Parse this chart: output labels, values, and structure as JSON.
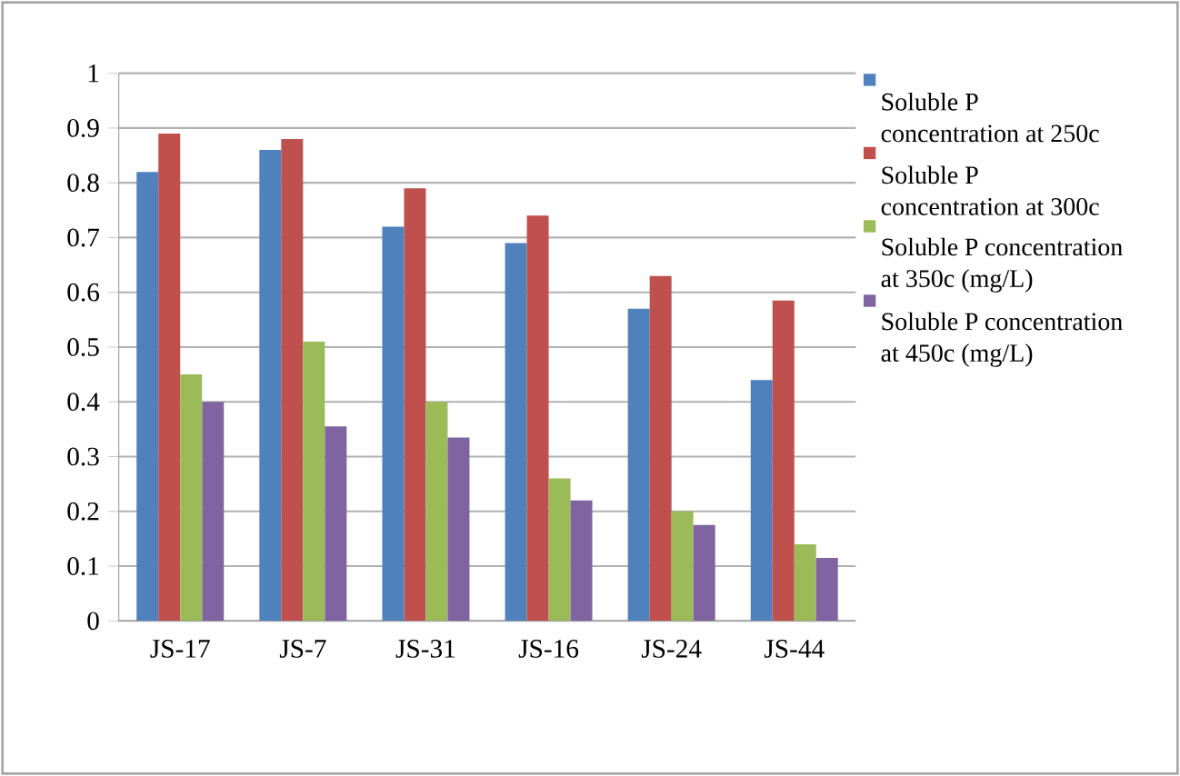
{
  "chart_data": {
    "type": "bar",
    "categories": [
      "JS-17",
      "JS-7",
      "JS-31",
      "JS-16",
      "JS-24",
      "JS-44"
    ],
    "series": [
      {
        "name": "Soluble P concentration at 250c",
        "color": "#4f81bd",
        "values": [
          0.82,
          0.86,
          0.72,
          0.69,
          0.57,
          0.44
        ]
      },
      {
        "name": "Soluble P concentration at 300c",
        "color": "#c0504d",
        "values": [
          0.89,
          0.88,
          0.79,
          0.74,
          0.63,
          0.585
        ]
      },
      {
        "name": "Soluble P concentration at 350c (mg/L)",
        "color": "#9bbb59",
        "values": [
          0.45,
          0.51,
          0.4,
          0.26,
          0.2,
          0.14
        ]
      },
      {
        "name": "Soluble P concentration at 450c (mg/L)",
        "color": "#8064a2",
        "values": [
          0.4,
          0.355,
          0.335,
          0.22,
          0.175,
          0.115
        ]
      }
    ],
    "ylim": [
      0,
      1
    ],
    "yticks": [
      0,
      0.1,
      0.2,
      0.3,
      0.4,
      0.5,
      0.6,
      0.7,
      0.8,
      0.9,
      1
    ],
    "grid": "y",
    "legend": "right"
  }
}
